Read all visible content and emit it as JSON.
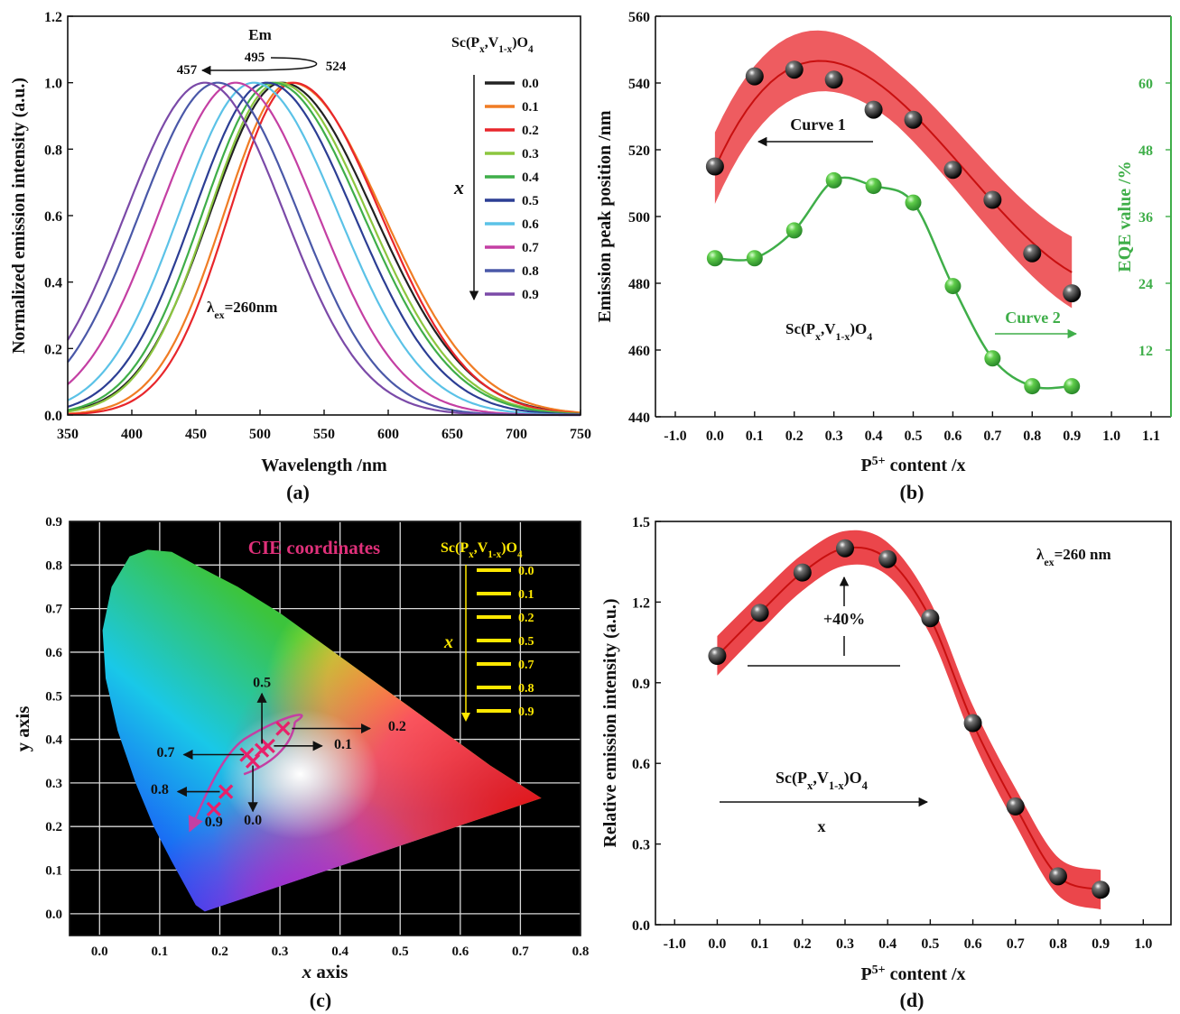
{
  "chart_data": [
    {
      "panel": "(a)",
      "type": "line",
      "xlabel": "Wavelength /nm",
      "ylabel": "Normalized emission intensity (a.u.)",
      "xlim": [
        350,
        750
      ],
      "ylim": [
        0.0,
        1.2
      ],
      "xticks": [
        "350",
        "400",
        "450",
        "500",
        "550",
        "600",
        "650",
        "700",
        "750"
      ],
      "yticks": [
        "0.0",
        "0.2",
        "0.4",
        "0.6",
        "0.8",
        "1.0",
        "1.2"
      ],
      "legend_title": "Sc(Px,V1-x)O4",
      "legend_x_label": "x",
      "legend_position": "top-right",
      "annotations": {
        "em": "Em",
        "start_peak": "524",
        "mid_peak": "495",
        "end_peak": "457",
        "excitation": "λex=260nm"
      },
      "series": [
        {
          "name": "0.0",
          "color": "#222222",
          "peak": 517,
          "width_left": 56,
          "width_right": 72
        },
        {
          "name": "0.1",
          "color": "#f07c24",
          "peak": 524,
          "width_left": 52,
          "width_right": 72
        },
        {
          "name": "0.2",
          "color": "#e8262b",
          "peak": 526,
          "width_left": 50,
          "width_right": 68
        },
        {
          "name": "0.3",
          "color": "#8cc63f",
          "peak": 514,
          "width_left": 54,
          "width_right": 70
        },
        {
          "name": "0.4",
          "color": "#3fae49",
          "peak": 510,
          "width_left": 55,
          "width_right": 70
        },
        {
          "name": "0.5",
          "color": "#2c3e94",
          "peak": 505,
          "width_left": 57,
          "width_right": 68
        },
        {
          "name": "0.6",
          "color": "#5bc2e7",
          "peak": 495,
          "width_left": 58,
          "width_right": 66
        },
        {
          "name": "0.7",
          "color": "#c43fa3",
          "peak": 481,
          "width_left": 60,
          "width_right": 64
        },
        {
          "name": "0.8",
          "color": "#4a58a8",
          "peak": 467,
          "width_left": 61,
          "width_right": 63
        },
        {
          "name": "0.9",
          "color": "#7b4aa8",
          "peak": 457,
          "width_left": 62,
          "width_right": 62
        }
      ]
    },
    {
      "panel": "(b)",
      "type": "scatter",
      "xlabel": "P5+ content /x",
      "ylabel_left": "Emission peak position /nm",
      "ylabel_right": "EQE value /%",
      "xlim": [
        -1.0,
        1.1
      ],
      "ylim_left": [
        440,
        560
      ],
      "ylim_right": [
        0,
        72
      ],
      "xticks": [
        "-1.0",
        "0.0",
        "0.1",
        "0.2",
        "0.3",
        "0.4",
        "0.5",
        "0.6",
        "0.7",
        "0.8",
        "0.9",
        "1.0",
        "1.1"
      ],
      "yticks_left": [
        "440",
        "460",
        "480",
        "500",
        "520",
        "540",
        "560"
      ],
      "yticks_right": [
        "12",
        "24",
        "36",
        "48",
        "60"
      ],
      "compound_label": "Sc(Px,V1-x)O4",
      "curve1_label": "Curve 1",
      "curve2_label": "Curve 2",
      "series": [
        {
          "name": "Curve 1",
          "axis": "left",
          "color": "#e8262b",
          "x": [
            0.0,
            0.1,
            0.2,
            0.3,
            0.4,
            0.5,
            0.6,
            0.7,
            0.8,
            0.9
          ],
          "y": [
            515,
            542,
            544,
            541,
            532,
            529,
            514,
            505,
            489,
            477
          ]
        },
        {
          "name": "Curve 2",
          "axis": "right",
          "color": "#3fae49",
          "x": [
            0.0,
            0.1,
            0.2,
            0.3,
            0.4,
            0.5,
            0.6,
            0.7,
            0.8,
            0.9
          ],
          "y": [
            28.5,
            28.5,
            33.5,
            42.5,
            41.5,
            38.5,
            23.5,
            10.5,
            5.5,
            5.5
          ]
        }
      ]
    },
    {
      "panel": "(c)",
      "type": "scatter",
      "title": "CIE coordinates",
      "xlabel": "x axis",
      "ylabel": "y axis",
      "xlim": [
        -0.05,
        0.8
      ],
      "ylim": [
        -0.05,
        0.9
      ],
      "xticks": [
        "0.0",
        "0.1",
        "0.2",
        "0.3",
        "0.4",
        "0.5",
        "0.6",
        "0.7",
        "0.8"
      ],
      "yticks": [
        "0.0",
        "0.1",
        "0.2",
        "0.3",
        "0.4",
        "0.5",
        "0.6",
        "0.7",
        "0.8",
        "0.9"
      ],
      "legend_title": "Sc(Px,V1-x)O4",
      "legend_x_label": "x",
      "legend_entries": [
        "0.0",
        "0.1",
        "0.2",
        "0.5",
        "0.7",
        "0.8",
        "0.9"
      ],
      "points": [
        {
          "label": "0.2",
          "x": 0.305,
          "y": 0.425
        },
        {
          "label": "0.1",
          "x": 0.28,
          "y": 0.385
        },
        {
          "label": "0.5",
          "x": 0.27,
          "y": 0.375
        },
        {
          "label": "0.7",
          "x": 0.245,
          "y": 0.365
        },
        {
          "label": "0.0",
          "x": 0.255,
          "y": 0.35
        },
        {
          "label": "0.8",
          "x": 0.21,
          "y": 0.28
        },
        {
          "label": "0.9",
          "x": 0.19,
          "y": 0.24
        }
      ]
    },
    {
      "panel": "(d)",
      "type": "scatter",
      "xlabel": "P5+ content /x",
      "ylabel": "Relative emission intensity (a.u.)",
      "xlim": [
        -1.0,
        1.0
      ],
      "ylim": [
        0.0,
        1.5
      ],
      "xticks": [
        "-1.0",
        "0.0",
        "0.1",
        "0.2",
        "0.3",
        "0.4",
        "0.5",
        "0.6",
        "0.7",
        "0.8",
        "0.9",
        "1.0"
      ],
      "yticks": [
        "0.0",
        "0.3",
        "0.6",
        "0.9",
        "1.2",
        "1.5"
      ],
      "annotations": {
        "excitation": "λex=260 nm",
        "increase": "+40%",
        "compound": "Sc(Px,V1-x)O4",
        "arrow_label": "x"
      },
      "series": [
        {
          "name": "",
          "color": "#e8262b",
          "x": [
            0.0,
            0.1,
            0.2,
            0.3,
            0.4,
            0.5,
            0.6,
            0.7,
            0.8,
            0.9
          ],
          "y": [
            1.0,
            1.16,
            1.31,
            1.4,
            1.36,
            1.14,
            0.75,
            0.44,
            0.18,
            0.13
          ]
        }
      ]
    }
  ],
  "panel_labels": [
    "(a)",
    "(b)",
    "(c)",
    "(d)"
  ]
}
